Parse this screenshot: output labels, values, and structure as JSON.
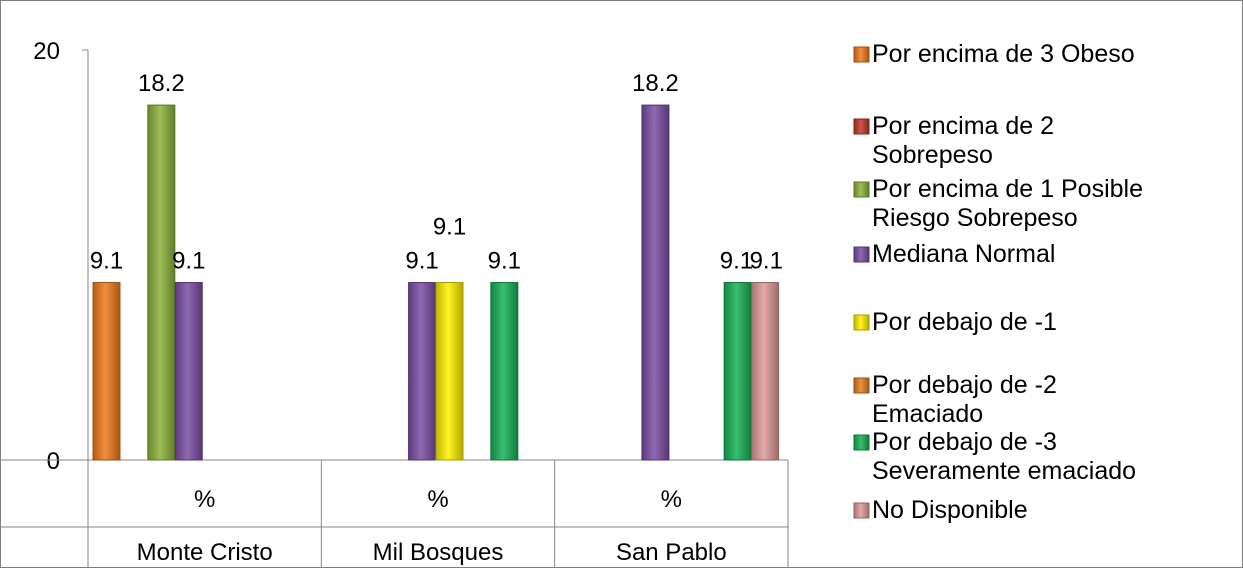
{
  "chart_data": {
    "type": "bar",
    "ylim": [
      0,
      20
    ],
    "y_ticks": [
      0,
      20
    ],
    "grid": false,
    "legend_position": "right",
    "groups": [
      {
        "category": "%",
        "region": "Monte Cristo",
        "values": [
          9.1,
          null,
          18.2,
          9.1,
          null,
          null,
          null,
          null
        ]
      },
      {
        "category": "%",
        "region": "Mil Bosques",
        "values": [
          null,
          null,
          null,
          9.1,
          9.1,
          null,
          9.1,
          null
        ]
      },
      {
        "category": "%",
        "region": "San Pablo",
        "values": [
          null,
          null,
          null,
          18.2,
          null,
          null,
          9.1,
          9.1
        ]
      }
    ],
    "value_labels": [
      [
        "9.1",
        "",
        "18.2",
        "9.1",
        "",
        "",
        "",
        ""
      ],
      [
        "",
        "",
        "",
        "9.1",
        "9.1",
        "",
        "9.1",
        ""
      ],
      [
        "",
        "",
        "",
        "18.2",
        "",
        "",
        "9.1",
        "9.1"
      ]
    ],
    "series": [
      {
        "name_lines": [
          "Por encima de 3 Obeso"
        ],
        "color": "#F07A1B"
      },
      {
        "name_lines": [
          "Por encima de 2",
          "Sobrepeso"
        ],
        "color": "#C0392B"
      },
      {
        "name_lines": [
          "Por encima de 1 Posible",
          "Riesgo Sobrepeso"
        ],
        "color": "#8DB33A"
      },
      {
        "name_lines": [
          "Mediana Normal"
        ],
        "color": "#7B4FA6"
      },
      {
        "name_lines": [
          "Por debajo de -1"
        ],
        "color": "#FFF200"
      },
      {
        "name_lines": [
          "Por debajo de -2",
          "Emaciado"
        ],
        "color": "#E4801E"
      },
      {
        "name_lines": [
          "Por debajo de -3",
          "Severamente emaciado"
        ],
        "color": "#17B356"
      },
      {
        "name_lines": [
          "No Disponible"
        ],
        "color": "#E29A9A"
      }
    ]
  }
}
